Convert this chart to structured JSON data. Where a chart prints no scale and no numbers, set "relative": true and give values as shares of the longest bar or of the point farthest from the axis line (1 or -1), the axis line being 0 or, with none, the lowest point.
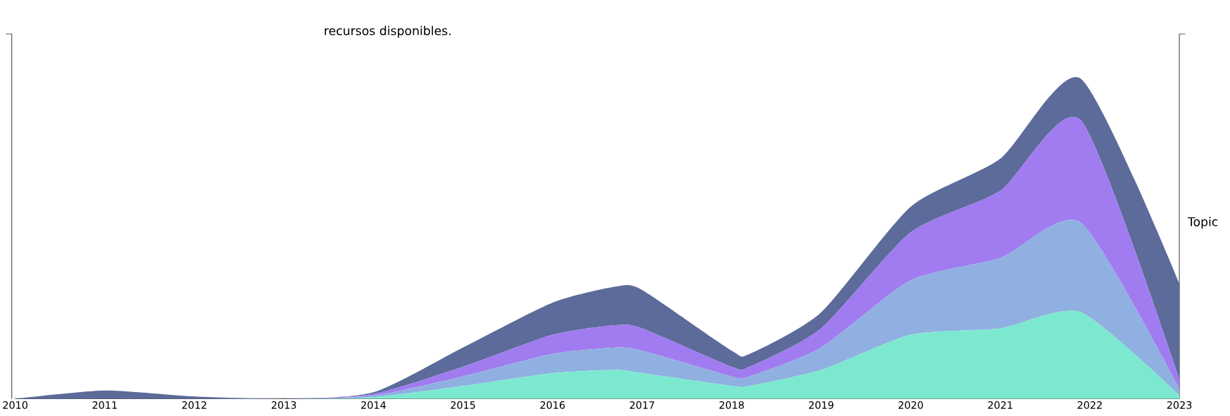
{
  "chart_data": {
    "type": "area",
    "title": "recursos disponibles.",
    "annotations": [
      "Topic"
    ],
    "relative": true,
    "stacked": true,
    "x": [
      2010,
      2011,
      2012,
      2013,
      2014,
      2015,
      2016,
      2016.7,
      2017,
      2018,
      2018.2,
      2019,
      2020,
      2021,
      2021.9,
      2023
    ],
    "xlim": [
      2010,
      2023
    ],
    "xticks": [
      2010,
      2011,
      2012,
      2013,
      2014,
      2015,
      2016,
      2017,
      2018,
      2019,
      2020,
      2021,
      2022,
      2023
    ],
    "series": [
      {
        "color": "#7de8d0",
        "values": [
          0,
          0,
          0,
          0,
          0.005,
          0.04,
          0.08,
          0.09,
          0.08,
          0.04,
          0.04,
          0.09,
          0.2,
          0.22,
          0.27,
          0.01
        ]
      },
      {
        "color": "#8fb0e0",
        "values": [
          0,
          0,
          0,
          0,
          0.005,
          0.03,
          0.06,
          0.07,
          0.07,
          0.03,
          0.03,
          0.07,
          0.17,
          0.22,
          0.28,
          0.02
        ]
      },
      {
        "color": "#a07cf0",
        "values": [
          0,
          0,
          0,
          0,
          0.005,
          0.03,
          0.06,
          0.07,
          0.07,
          0.03,
          0.03,
          0.06,
          0.15,
          0.21,
          0.32,
          0.03
        ]
      },
      {
        "color": "#5c6b9a",
        "values": [
          0,
          0.026,
          0.007,
          0,
          0.005,
          0.06,
          0.1,
          0.12,
          0.12,
          0.05,
          0.04,
          0.05,
          0.08,
          0.1,
          0.13,
          0.3
        ]
      }
    ]
  }
}
